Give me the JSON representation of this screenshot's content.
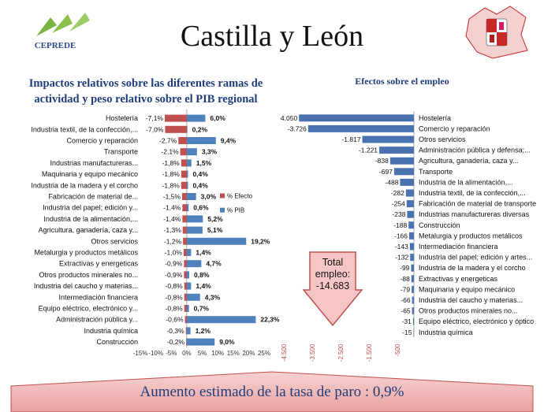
{
  "header": {
    "title": "Castilla y León",
    "logo_text": "CEPREDE",
    "logo_icon": "ceprede-leaf-logo",
    "coat_of_arms_icon": "castilla-leon-coat-of-arms"
  },
  "banner": {
    "text": "Aumento estimado de la tasa de paro :  0,9%"
  },
  "total_box": {
    "text_line1": "Total",
    "text_line2": "empleo:",
    "text_line3": "-14.683"
  },
  "colors": {
    "efecto": "#c0504d",
    "pib": "#4f81bd",
    "employment": "#4a72b0",
    "title": "#1f3d7a",
    "banner": "#f2b8b8"
  },
  "chart_data": [
    {
      "type": "bar",
      "orientation": "horizontal",
      "title": "Impactos relativos sobre las diferentes ramas de actividad y peso relativo sobre el PIB regional",
      "categories": [
        "Hostelería",
        "Industria textil, de la confección,...",
        "Comercio y reparación",
        "Transporte",
        "Industrias manufactureras...",
        "Maquinaria y equipo mecánico",
        "Industria de la madera y el corcho",
        "Fabricación de material de...",
        "Industria del papel; edición y...",
        "Industria de la alimentación,...",
        "Agricultura, ganadería, caza y...",
        "Otros servicios",
        "Metalurgia y  productos metálicos",
        "Extractivas y energeticas",
        "Otros productos minerales no...",
        "Industria del caucho y materias...",
        "Intermediación financiera",
        "Equipo eléctrico, electrónico y...",
        "Administración pública y...",
        "Industria química",
        "Construcción"
      ],
      "series": [
        {
          "name": "% Efecto",
          "values": [
            -7.1,
            -7.0,
            -2.7,
            -2.1,
            -1.8,
            -1.8,
            -1.8,
            -1.5,
            -1.4,
            -1.4,
            -1.3,
            -1.2,
            -1.0,
            -0.9,
            -0.9,
            -0.8,
            -0.8,
            -0.8,
            -0.6,
            -0.3,
            -0.2
          ],
          "labels": [
            "-7,1%",
            "-7,0%",
            "-2,7%",
            "-2,1%",
            "-1,8%",
            "-1,8%",
            "-1,8%",
            "-1,5%",
            "-1,4%",
            "-1,4%",
            "-1,3%",
            "-1,2%",
            "-1,0%",
            "-0,9%",
            "-0,9%",
            "-0,8%",
            "-0,8%",
            "-0,8%",
            "-0,6%",
            "-0,3%",
            "-0,2%"
          ]
        },
        {
          "name": "% PIB",
          "values": [
            6.0,
            0.2,
            9.4,
            3.3,
            1.5,
            0.4,
            0.4,
            3.0,
            0.6,
            5.2,
            5.1,
            19.2,
            1.4,
            4.7,
            0.8,
            1.4,
            4.3,
            0.7,
            22.3,
            1.2,
            9.0
          ],
          "labels": [
            "6,0%",
            "0,2%",
            "9,4%",
            "3,3%",
            "1,5%",
            "0,4%",
            "0,4%",
            "3,0%",
            "0,6%",
            "5,2%",
            "5,1%",
            "19,2%",
            "1,4%",
            "4,7%",
            "0,8%",
            "1,4%",
            "4,3%",
            "0,7%",
            "22,3%",
            "1,2%",
            "9,0%"
          ]
        }
      ],
      "xlim": [
        -15,
        25
      ],
      "xticks": [
        "-15%",
        "-10%",
        "-5%",
        "0%",
        "5%",
        "10%",
        "15%",
        "20%",
        "25%"
      ],
      "xtick_values": [
        -15,
        -10,
        -5,
        0,
        5,
        10,
        15,
        20,
        25
      ],
      "legend": [
        "% Efecto",
        "% PIB"
      ],
      "legend_position": "right"
    },
    {
      "type": "bar",
      "orientation": "horizontal",
      "title": "Efectos  sobre el empleo",
      "categories": [
        "Hostelería",
        "Comercio y reparación",
        "Otros servicios",
        "Administración pública y defensa;...",
        "Agricultura, ganadería, caza y...",
        "Transporte",
        "Industria de la alimentación,...",
        "Industria textil, de la confección,...",
        "Fabricación de material de transporte",
        "Industrias manufactureras diversas",
        "Construcción",
        "Metalurgia y  productos metálicos",
        "Intermediación financiera",
        "Industria del papel; edición y artes...",
        "Industria de la madera y el corcho",
        "Extractivas y energeticas",
        "Maquinaria y equipo mecánico",
        "Industria del caucho y materias...",
        "Otros productos minerales no...",
        "Equipo eléctrico, electrónico y óptico",
        "Industria química"
      ],
      "values": [
        -4050,
        -3726,
        -1817,
        -1221,
        -838,
        -697,
        -488,
        -282,
        -254,
        -238,
        -188,
        -166,
        -143,
        -132,
        -99,
        -88,
        -79,
        -66,
        -65,
        -31,
        -15
      ],
      "labels": [
        "-4.050",
        "-3.726",
        "-1.817",
        "-1.221",
        "-838",
        "-697",
        "-488",
        "-282",
        "-254",
        "-238",
        "-188",
        "-166",
        "-143",
        "-132",
        "-99",
        "-88",
        "-79",
        "-66",
        "-65",
        "-31",
        "-15"
      ],
      "xlim": [
        -4500,
        0
      ],
      "xticks": [
        "-4.500",
        "-3.500",
        "-2.500",
        "-1.500",
        "-500"
      ],
      "xtick_values": [
        -4500,
        -3500,
        -2500,
        -1500,
        -500
      ]
    }
  ]
}
